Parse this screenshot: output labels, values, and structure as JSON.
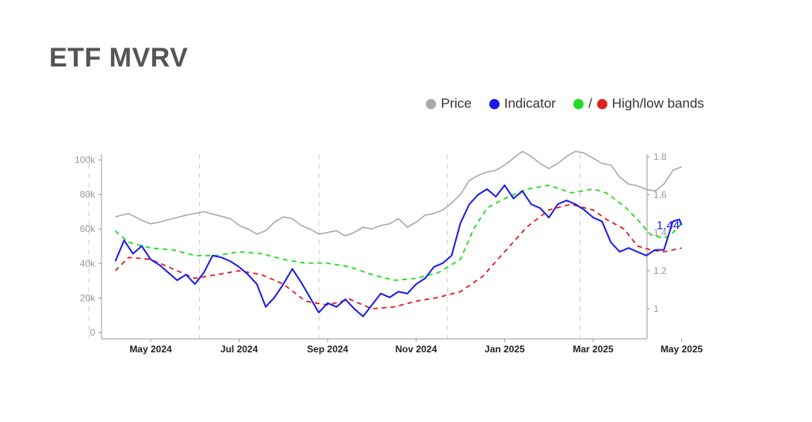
{
  "title": "ETF MVRV",
  "legend": {
    "price": "Price",
    "indicator": "Indicator",
    "bands": "High/low bands",
    "bands_slash": "/"
  },
  "colors": {
    "price": "#aaaaaa",
    "indicator": "#1a1aee",
    "high_band": "#22dd22",
    "low_band": "#dd2222",
    "axis": "#999999",
    "grid": "#cccccc"
  },
  "chart_data": {
    "type": "line",
    "title": "ETF MVRV",
    "x_ticks": [
      "May 2024",
      "Jul 2024",
      "Sep 2024",
      "Nov 2024",
      "Jan 2025",
      "Mar 2025",
      "May 2025"
    ],
    "y_left": {
      "ticks": [
        "0",
        "20k",
        "40k",
        "60k",
        "80k",
        "100k"
      ],
      "range": [
        0,
        110000
      ]
    },
    "y_right": {
      "ticks": [
        "1",
        "1.2",
        "1.4",
        "1.6",
        "1.8"
      ],
      "range": [
        0.88,
        1.8
      ]
    },
    "last_value_label": "1.44",
    "x_range_months": [
      -0.8,
      12.0
    ],
    "series": [
      {
        "name": "Price",
        "axis": "left",
        "points": [
          [
            -0.8,
            67000
          ],
          [
            -0.5,
            69000
          ],
          [
            -0.2,
            65000
          ],
          [
            0.0,
            63000
          ],
          [
            0.2,
            64000
          ],
          [
            0.5,
            66000
          ],
          [
            0.8,
            68000
          ],
          [
            1.0,
            69000
          ],
          [
            1.2,
            70000
          ],
          [
            1.5,
            68000
          ],
          [
            1.8,
            66000
          ],
          [
            2.0,
            62000
          ],
          [
            2.2,
            60000
          ],
          [
            2.4,
            57000
          ],
          [
            2.6,
            59000
          ],
          [
            2.8,
            64000
          ],
          [
            3.0,
            67000
          ],
          [
            3.2,
            66000
          ],
          [
            3.4,
            62000
          ],
          [
            3.6,
            60000
          ],
          [
            3.8,
            57000
          ],
          [
            4.0,
            58000
          ],
          [
            4.2,
            59000
          ],
          [
            4.4,
            56000
          ],
          [
            4.6,
            58000
          ],
          [
            4.8,
            61000
          ],
          [
            5.0,
            60000
          ],
          [
            5.2,
            62000
          ],
          [
            5.4,
            63000
          ],
          [
            5.6,
            66000
          ],
          [
            5.8,
            61000
          ],
          [
            6.0,
            64000
          ],
          [
            6.2,
            68000
          ],
          [
            6.4,
            69000
          ],
          [
            6.6,
            71000
          ],
          [
            6.8,
            75000
          ],
          [
            7.0,
            80000
          ],
          [
            7.2,
            88000
          ],
          [
            7.4,
            91000
          ],
          [
            7.6,
            93000
          ],
          [
            7.8,
            94000
          ],
          [
            8.0,
            97000
          ],
          [
            8.2,
            101000
          ],
          [
            8.4,
            105000
          ],
          [
            8.6,
            102000
          ],
          [
            8.8,
            98000
          ],
          [
            9.0,
            95000
          ],
          [
            9.2,
            98000
          ],
          [
            9.4,
            102000
          ],
          [
            9.6,
            105000
          ],
          [
            9.8,
            104000
          ],
          [
            10.0,
            101000
          ],
          [
            10.2,
            98000
          ],
          [
            10.4,
            97000
          ],
          [
            10.6,
            90000
          ],
          [
            10.8,
            86000
          ],
          [
            11.0,
            85000
          ],
          [
            11.2,
            83000
          ],
          [
            11.4,
            82000
          ],
          [
            11.6,
            86000
          ],
          [
            11.8,
            94000
          ],
          [
            12.0,
            96000
          ]
        ]
      },
      {
        "name": "Indicator",
        "axis": "right",
        "points": [
          [
            -0.8,
            1.25
          ],
          [
            -0.6,
            1.36
          ],
          [
            -0.4,
            1.29
          ],
          [
            -0.2,
            1.33
          ],
          [
            0.0,
            1.26
          ],
          [
            0.2,
            1.23
          ],
          [
            0.4,
            1.19
          ],
          [
            0.6,
            1.15
          ],
          [
            0.8,
            1.18
          ],
          [
            1.0,
            1.13
          ],
          [
            1.2,
            1.19
          ],
          [
            1.4,
            1.28
          ],
          [
            1.6,
            1.27
          ],
          [
            1.8,
            1.25
          ],
          [
            2.0,
            1.22
          ],
          [
            2.2,
            1.18
          ],
          [
            2.4,
            1.13
          ],
          [
            2.6,
            1.01
          ],
          [
            2.8,
            1.06
          ],
          [
            3.0,
            1.13
          ],
          [
            3.2,
            1.21
          ],
          [
            3.4,
            1.14
          ],
          [
            3.6,
            1.06
          ],
          [
            3.8,
            0.98
          ],
          [
            4.0,
            1.03
          ],
          [
            4.2,
            1.01
          ],
          [
            4.4,
            1.05
          ],
          [
            4.6,
            1.0
          ],
          [
            4.8,
            0.96
          ],
          [
            5.0,
            1.02
          ],
          [
            5.2,
            1.08
          ],
          [
            5.4,
            1.06
          ],
          [
            5.6,
            1.09
          ],
          [
            5.8,
            1.08
          ],
          [
            6.0,
            1.13
          ],
          [
            6.2,
            1.16
          ],
          [
            6.4,
            1.22
          ],
          [
            6.6,
            1.24
          ],
          [
            6.8,
            1.28
          ],
          [
            7.0,
            1.45
          ],
          [
            7.2,
            1.55
          ],
          [
            7.4,
            1.6
          ],
          [
            7.6,
            1.63
          ],
          [
            7.8,
            1.59
          ],
          [
            8.0,
            1.65
          ],
          [
            8.2,
            1.58
          ],
          [
            8.4,
            1.62
          ],
          [
            8.6,
            1.55
          ],
          [
            8.8,
            1.53
          ],
          [
            9.0,
            1.48
          ],
          [
            9.2,
            1.55
          ],
          [
            9.4,
            1.57
          ],
          [
            9.6,
            1.55
          ],
          [
            9.8,
            1.52
          ],
          [
            10.0,
            1.48
          ],
          [
            10.2,
            1.46
          ],
          [
            10.4,
            1.35
          ],
          [
            10.6,
            1.3
          ],
          [
            10.8,
            1.32
          ],
          [
            11.0,
            1.3
          ],
          [
            11.2,
            1.28
          ],
          [
            11.4,
            1.31
          ],
          [
            11.6,
            1.31
          ],
          [
            11.8,
            1.46
          ],
          [
            11.95,
            1.47
          ],
          [
            12.0,
            1.44
          ]
        ]
      },
      {
        "name": "High band",
        "axis": "right",
        "dashed": true,
        "points": [
          [
            -0.8,
            1.41
          ],
          [
            -0.5,
            1.35
          ],
          [
            0.0,
            1.32
          ],
          [
            0.5,
            1.31
          ],
          [
            1.0,
            1.28
          ],
          [
            1.5,
            1.28
          ],
          [
            2.0,
            1.3
          ],
          [
            2.5,
            1.29
          ],
          [
            3.0,
            1.26
          ],
          [
            3.5,
            1.24
          ],
          [
            4.0,
            1.24
          ],
          [
            4.5,
            1.22
          ],
          [
            5.0,
            1.18
          ],
          [
            5.5,
            1.15
          ],
          [
            6.0,
            1.16
          ],
          [
            6.5,
            1.19
          ],
          [
            7.0,
            1.26
          ],
          [
            7.3,
            1.42
          ],
          [
            7.6,
            1.53
          ],
          [
            8.0,
            1.58
          ],
          [
            8.5,
            1.63
          ],
          [
            9.0,
            1.65
          ],
          [
            9.5,
            1.61
          ],
          [
            10.0,
            1.63
          ],
          [
            10.3,
            1.61
          ],
          [
            10.7,
            1.54
          ],
          [
            11.0,
            1.47
          ],
          [
            11.3,
            1.39
          ],
          [
            11.6,
            1.37
          ],
          [
            11.8,
            1.4
          ],
          [
            12.0,
            1.45
          ]
        ]
      },
      {
        "name": "Low band",
        "axis": "right",
        "dashed": true,
        "points": [
          [
            -0.8,
            1.2
          ],
          [
            -0.5,
            1.27
          ],
          [
            0.0,
            1.26
          ],
          [
            0.5,
            1.21
          ],
          [
            1.0,
            1.16
          ],
          [
            1.5,
            1.18
          ],
          [
            2.0,
            1.2
          ],
          [
            2.5,
            1.18
          ],
          [
            3.0,
            1.13
          ],
          [
            3.5,
            1.04
          ],
          [
            4.0,
            1.02
          ],
          [
            4.5,
            1.05
          ],
          [
            5.0,
            1.0
          ],
          [
            5.5,
            1.01
          ],
          [
            6.0,
            1.04
          ],
          [
            6.5,
            1.06
          ],
          [
            7.0,
            1.09
          ],
          [
            7.5,
            1.17
          ],
          [
            8.0,
            1.3
          ],
          [
            8.5,
            1.43
          ],
          [
            9.0,
            1.52
          ],
          [
            9.5,
            1.55
          ],
          [
            10.0,
            1.52
          ],
          [
            10.3,
            1.47
          ],
          [
            10.7,
            1.42
          ],
          [
            11.0,
            1.33
          ],
          [
            11.3,
            1.31
          ],
          [
            11.6,
            1.3
          ],
          [
            11.8,
            1.31
          ],
          [
            12.0,
            1.32
          ]
        ]
      }
    ],
    "vertical_gridlines_months": [
      -0.5,
      2.0,
      4.7,
      7.6,
      10.6
    ],
    "grid": "vertical dashed",
    "legend_placement": "top-right"
  }
}
